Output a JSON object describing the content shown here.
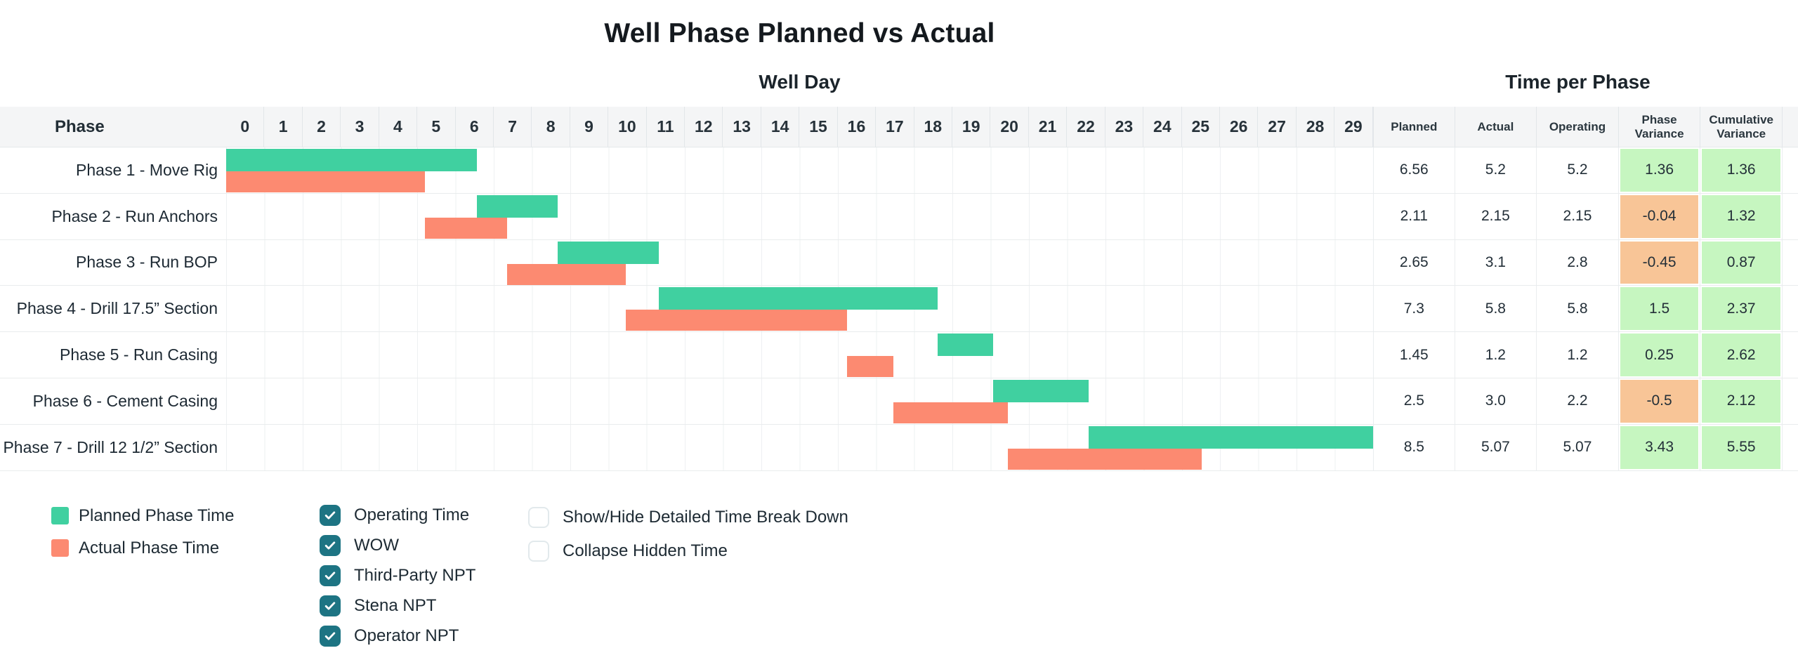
{
  "title": "Well Phase Planned vs Actual",
  "phase_column_header": "Phase",
  "table": {
    "title": "Time per Phase",
    "headers": [
      "Planned",
      "Actual",
      "Operating",
      "Phase Variance",
      "Cumulative Variance"
    ]
  },
  "chart_data": {
    "type": "gantt",
    "title": "Well Phase Planned vs Actual",
    "x_axis": {
      "label": "Well Day",
      "min": 0,
      "max": 30,
      "tick_labels": [
        "0",
        "1",
        "2",
        "3",
        "4",
        "5",
        "6",
        "7",
        "8",
        "9",
        "10",
        "11",
        "12",
        "13",
        "14",
        "15",
        "16",
        "17",
        "18",
        "19",
        "20",
        "21",
        "22",
        "23",
        "24",
        "25",
        "26",
        "27",
        "28",
        "29"
      ]
    },
    "bar_series": [
      {
        "name": "Planned Phase Time",
        "color": "#40D0A0"
      },
      {
        "name": "Actual Phase Time",
        "color": "#FC8A71"
      }
    ],
    "phases": [
      {
        "name": "Phase 1 - Move Rig",
        "planned_start": 0,
        "planned_duration": 6.56,
        "actual_start": 0,
        "actual_duration": 5.2,
        "table": {
          "planned": "6.56",
          "actual": "5.2",
          "operating": "5.2",
          "phase_variance": "1.36",
          "cumulative_variance": "1.36"
        }
      },
      {
        "name": "Phase 2 - Run Anchors",
        "planned_start": 6.56,
        "planned_duration": 2.11,
        "actual_start": 5.2,
        "actual_duration": 2.15,
        "table": {
          "planned": "2.11",
          "actual": "2.15",
          "operating": "2.15",
          "phase_variance": "-0.04",
          "cumulative_variance": "1.32"
        }
      },
      {
        "name": "Phase 3 - Run BOP",
        "planned_start": 8.67,
        "planned_duration": 2.65,
        "actual_start": 7.35,
        "actual_duration": 3.1,
        "table": {
          "planned": "2.65",
          "actual": "3.1",
          "operating": "2.8",
          "phase_variance": "-0.45",
          "cumulative_variance": "0.87"
        }
      },
      {
        "name": "Phase 4 - Drill 17.5” Section",
        "planned_start": 11.32,
        "planned_duration": 7.3,
        "actual_start": 10.45,
        "actual_duration": 5.8,
        "table": {
          "planned": "7.3",
          "actual": "5.8",
          "operating": "5.8",
          "phase_variance": "1.5",
          "cumulative_variance": "2.37"
        }
      },
      {
        "name": "Phase 5 - Run Casing",
        "planned_start": 18.62,
        "planned_duration": 1.45,
        "actual_start": 16.25,
        "actual_duration": 1.2,
        "table": {
          "planned": "1.45",
          "actual": "1.2",
          "operating": "1.2",
          "phase_variance": "0.25",
          "cumulative_variance": "2.62"
        }
      },
      {
        "name": "Phase 6 - Cement Casing",
        "planned_start": 20.07,
        "planned_duration": 2.5,
        "actual_start": 17.45,
        "actual_duration": 3.0,
        "table": {
          "planned": "2.5",
          "actual": "3.0",
          "operating": "2.2",
          "phase_variance": "-0.5",
          "cumulative_variance": "2.12"
        }
      },
      {
        "name": "Phase 7 - Drill 12 1/2” Section",
        "planned_start": 22.57,
        "planned_duration": 8.5,
        "actual_start": 20.45,
        "actual_duration": 5.07,
        "table": {
          "planned": "8.5",
          "actual": "5.07",
          "operating": "5.07",
          "phase_variance": "3.43",
          "cumulative_variance": "5.55"
        }
      }
    ]
  },
  "legend": {
    "items": [
      {
        "label": "Planned Phase Time",
        "color": "#40D0A0"
      },
      {
        "label": "Actual Phase Time",
        "color": "#FC8A71"
      }
    ]
  },
  "controls": {
    "series_toggles": [
      {
        "label": "Operating Time",
        "checked": true
      },
      {
        "label": "WOW",
        "checked": true
      },
      {
        "label": "Third-Party NPT",
        "checked": true
      },
      {
        "label": "Stena NPT",
        "checked": true
      },
      {
        "label": "Operator NPT",
        "checked": true
      }
    ],
    "display_options": [
      {
        "label": "Show/Hide Detailed Time Break Down",
        "checked": false
      },
      {
        "label": "Collapse Hidden Time",
        "checked": false
      }
    ]
  },
  "colors": {
    "planned_bar": "#40D0A0",
    "actual_bar": "#FC8A71",
    "variance_positive_cell": "#C6F6C0",
    "variance_negative_cell": "#F8C597",
    "checkbox_checked": "#1D7483",
    "header_strip": "#f4f5f6"
  }
}
